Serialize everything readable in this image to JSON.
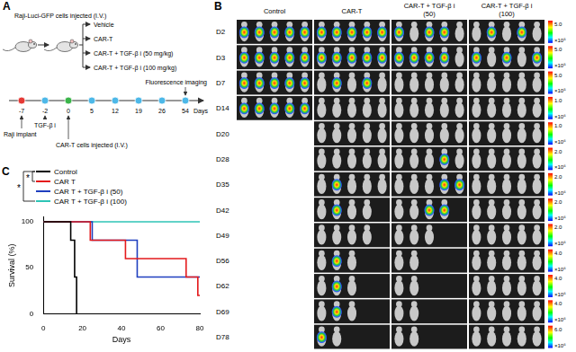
{
  "panel_a": {
    "label": "A",
    "injection": "Raji-Luci-GFP cells injected (I.V.)",
    "groups": [
      "Vehicle",
      "CAR-T",
      "CAR-T + TGF-β i (50 mg/kg)",
      "CAR-T + TGF-β i (100 mg/kg)"
    ],
    "timeline": {
      "days": [
        {
          "day": -7,
          "color": "#e53935"
        },
        {
          "day": -2,
          "color": "#4db8e8"
        },
        {
          "day": 0,
          "color": "#3bb54a"
        },
        {
          "day": 5,
          "color": "#4db8e8"
        },
        {
          "day": 12,
          "color": "#4db8e8"
        },
        {
          "day": 19,
          "color": "#4db8e8"
        },
        {
          "day": 26,
          "color": "#4db8e8"
        },
        {
          "day": 54,
          "color": "#4db8e8"
        }
      ],
      "axis_label": "Days",
      "imaging": "Fluorescence imaging",
      "events": [
        {
          "day": -7,
          "label": "Raji implant"
        },
        {
          "day": -2,
          "label": "TGF-β i"
        },
        {
          "day": 0,
          "label": "CAR-T cells injected (I.V.)"
        }
      ]
    }
  },
  "panel_b": {
    "label": "B",
    "columns": [
      "Control",
      "CAR-T",
      "CAR-T + TGF-β i (50)",
      "CAR-T + TGF-β i (100)"
    ],
    "rows": [
      {
        "day": "D2",
        "mice": [
          5,
          5,
          5,
          5
        ],
        "signal": [
          [
            0,
            1,
            2,
            3,
            4
          ],
          [
            0,
            1,
            2,
            3,
            4
          ],
          [
            0,
            2,
            3
          ],
          [
            1,
            3
          ]
        ],
        "colorbar": [
          "5.0",
          "×10⁵"
        ]
      },
      {
        "day": "D3",
        "mice": [
          5,
          5,
          5,
          5
        ],
        "signal": [
          [
            0,
            1,
            2,
            3,
            4
          ],
          [
            0,
            1,
            2,
            3,
            4
          ],
          [
            0,
            1,
            2,
            3
          ],
          [
            0,
            2,
            4
          ]
        ],
        "colorbar": [
          "5.0",
          "×10⁵"
        ]
      },
      {
        "day": "D7",
        "mice": [
          5,
          5,
          5,
          5
        ],
        "signal": [
          [
            0,
            1,
            2,
            3,
            4
          ],
          [
            1,
            3
          ],
          [],
          []
        ],
        "colorbar": [
          "5.0",
          "×10⁵"
        ]
      },
      {
        "day": "D14",
        "mice": [
          5,
          5,
          5,
          5
        ],
        "signal": [
          [
            0,
            1,
            2,
            3,
            4
          ],
          [],
          [],
          []
        ],
        "colorbar": [
          "1.0",
          "×10⁶"
        ]
      },
      {
        "day": "D20",
        "mice": [
          0,
          5,
          5,
          5
        ],
        "signal": [
          [],
          [],
          [],
          []
        ],
        "colorbar": [
          "1.0",
          "×10⁶"
        ]
      },
      {
        "day": "D28",
        "mice": [
          0,
          5,
          5,
          5
        ],
        "signal": [
          [],
          [],
          [
            3
          ],
          []
        ],
        "colorbar": [
          "2.0",
          "×10⁶"
        ]
      },
      {
        "day": "D35",
        "mice": [
          0,
          5,
          5,
          5
        ],
        "signal": [
          [],
          [
            1
          ],
          [
            3,
            4
          ],
          []
        ],
        "colorbar": [
          "2.0",
          "×10⁶"
        ]
      },
      {
        "day": "D42",
        "mice": [
          0,
          4,
          4,
          5
        ],
        "signal": [
          [],
          [
            1
          ],
          [
            2,
            3
          ],
          []
        ],
        "colorbar": [
          "2.0",
          "×10⁶"
        ]
      },
      {
        "day": "D49",
        "mice": [
          0,
          4,
          3,
          5
        ],
        "signal": [
          [],
          [],
          [],
          []
        ],
        "colorbar": [
          "2.0",
          "×10⁶"
        ]
      },
      {
        "day": "D56",
        "mice": [
          0,
          3,
          2,
          5
        ],
        "signal": [
          [],
          [
            1
          ],
          [],
          []
        ],
        "colorbar": [
          "4.0",
          "×10⁶"
        ]
      },
      {
        "day": "D62",
        "mice": [
          0,
          3,
          2,
          5
        ],
        "signal": [
          [],
          [
            1
          ],
          [],
          []
        ],
        "colorbar": [
          "4.0",
          "×10⁶"
        ]
      },
      {
        "day": "D69",
        "mice": [
          0,
          3,
          2,
          5
        ],
        "signal": [
          [],
          [
            1
          ],
          [],
          []
        ],
        "colorbar": [
          "4.0",
          "×10⁶"
        ]
      },
      {
        "day": "D78",
        "mice": [
          0,
          2,
          2,
          5
        ],
        "signal": [
          [],
          [
            0
          ],
          [],
          []
        ],
        "colorbar": [
          "6.0",
          "×10⁶"
        ]
      }
    ]
  },
  "chart_data": {
    "type": "line",
    "panel_label": "C",
    "x_label": "Days",
    "y_label": "Survival (%)",
    "xlim": [
      0,
      80
    ],
    "xticks": [
      0,
      20,
      40,
      60,
      80
    ],
    "ylim": [
      0,
      105
    ],
    "yticks": [
      0,
      50,
      100
    ],
    "grid": false,
    "legend": "top-left",
    "line_style": "step",
    "annotations": [
      "*",
      "*"
    ],
    "series": [
      {
        "name": "Control",
        "color": "#000000",
        "x": [
          0,
          14,
          16,
          17
        ],
        "values": [
          100,
          80,
          40,
          0
        ]
      },
      {
        "name": "CAR T",
        "color": "#e41a1c",
        "x": [
          0,
          24,
          42,
          73,
          79,
          80
        ],
        "values": [
          100,
          80,
          60,
          40,
          20,
          20
        ]
      },
      {
        "name": "CAR T + TGF-β i (50)",
        "color": "#1f3fbf",
        "x": [
          0,
          25,
          48,
          80
        ],
        "values": [
          100,
          80,
          40,
          40
        ]
      },
      {
        "name": "CAR T + TGF-β i (100)",
        "color": "#2ec4b6",
        "x": [
          0,
          80
        ],
        "values": [
          100,
          100
        ]
      }
    ]
  }
}
